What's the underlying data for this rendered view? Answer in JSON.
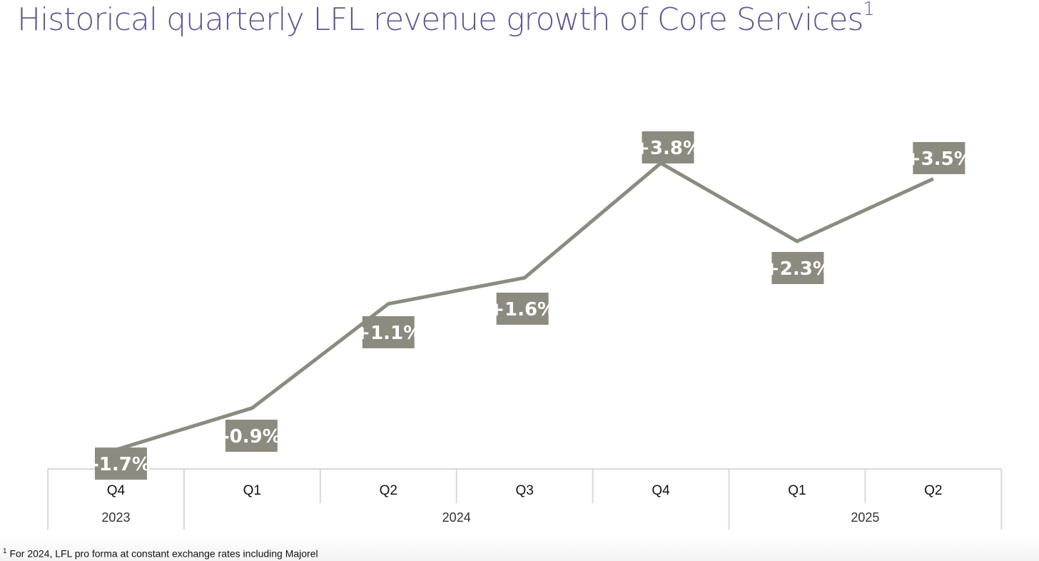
{
  "chart_data": {
    "type": "line",
    "title": "Historical quarterly LFL revenue growth of Core Services",
    "title_footnote_mark": "1",
    "categories": [
      "Q4",
      "Q1",
      "Q2",
      "Q3",
      "Q4",
      "Q1",
      "Q2"
    ],
    "years": [
      {
        "label": "2023",
        "span": 1
      },
      {
        "label": "2024",
        "span": 4
      },
      {
        "label": "2025",
        "span": 2
      }
    ],
    "series": [
      {
        "name": "LFL revenue growth (%)",
        "values": [
          -1.7,
          -0.9,
          1.1,
          1.6,
          3.8,
          2.3,
          3.5
        ]
      }
    ],
    "data_labels": [
      "-1.7%",
      "-0.9%",
      "+1.1%",
      "+1.6%",
      "+3.8%",
      "+2.3%",
      "+3.5%"
    ],
    "xlabel": "",
    "ylabel": "",
    "grid": false,
    "line_color": "#8d8a7f",
    "label_bg": "#8d8a7f",
    "title_color": "#64558f"
  },
  "footnote": {
    "mark": "1",
    "text": "For 2024, LFL pro forma at constant exchange rates including Majorel"
  }
}
